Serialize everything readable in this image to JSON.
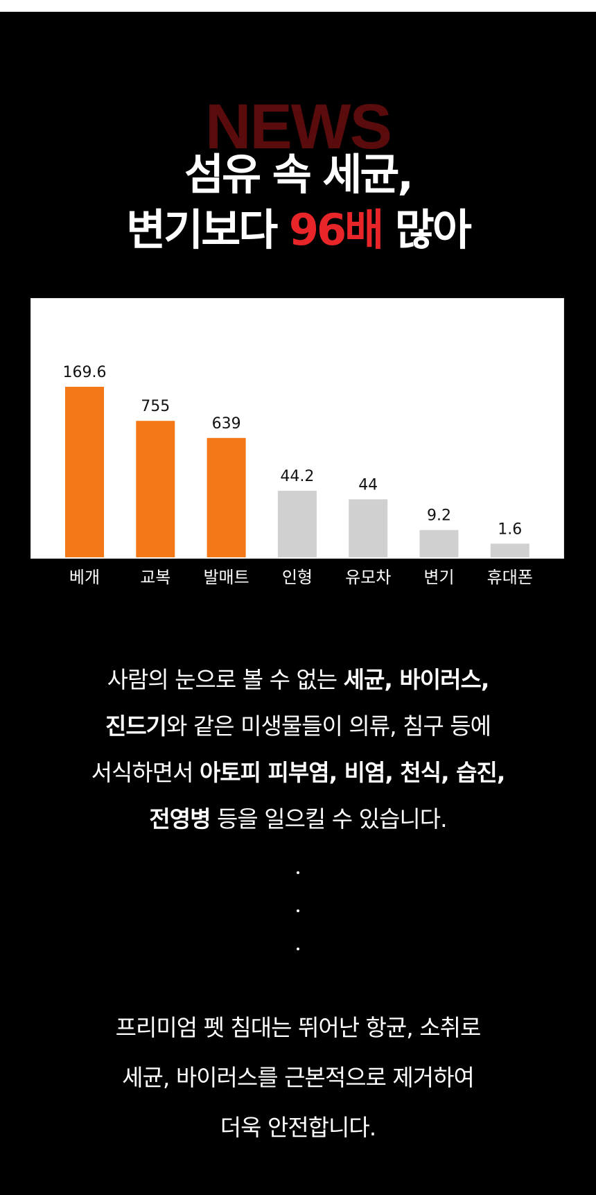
{
  "header": {
    "bg_word": "NEWS",
    "line1": "섬유 속 세균,",
    "line2_pre": "변기보다 ",
    "line2_accent": "96배",
    "line2_post": " 많아"
  },
  "chart_data": {
    "type": "bar",
    "categories": [
      "베개",
      "교복",
      "발매트",
      "인형",
      "유모차",
      "변기",
      "휴대폰"
    ],
    "values": [
      169.6,
      755,
      639,
      44.2,
      44,
      9.2,
      1.6
    ],
    "value_labels": [
      "169.6",
      "755",
      "639",
      "44.2",
      "44",
      "9.2",
      "1.6"
    ],
    "highlight": [
      true,
      true,
      true,
      false,
      false,
      false,
      false
    ],
    "colors": {
      "highlight": "#f47718",
      "normal": "#d0d0d0"
    },
    "title": "",
    "xlabel": "",
    "ylabel": "",
    "grid": false
  },
  "paragraph1": {
    "l1_a": "사람의 눈으로 볼 수 없는 ",
    "l1_b": "세균, 바이러스,",
    "l2_a": "진드기",
    "l2_b": "와 같은 미생물들이 의류, 침구 등에",
    "l3_a": "서식하면서 ",
    "l3_b": "아토피 피부염, 비염, 천식, 습진,",
    "l4_a": "전영병",
    "l4_b": " 등을 일으킬 수 있습니다."
  },
  "paragraph2": {
    "l1": "프리미엄 펫 침대는 뛰어난 항균, 소취로",
    "l2": "세균, 바이러스를 근본적으로 제거하여",
    "l3": "더욱 안전합니다."
  }
}
